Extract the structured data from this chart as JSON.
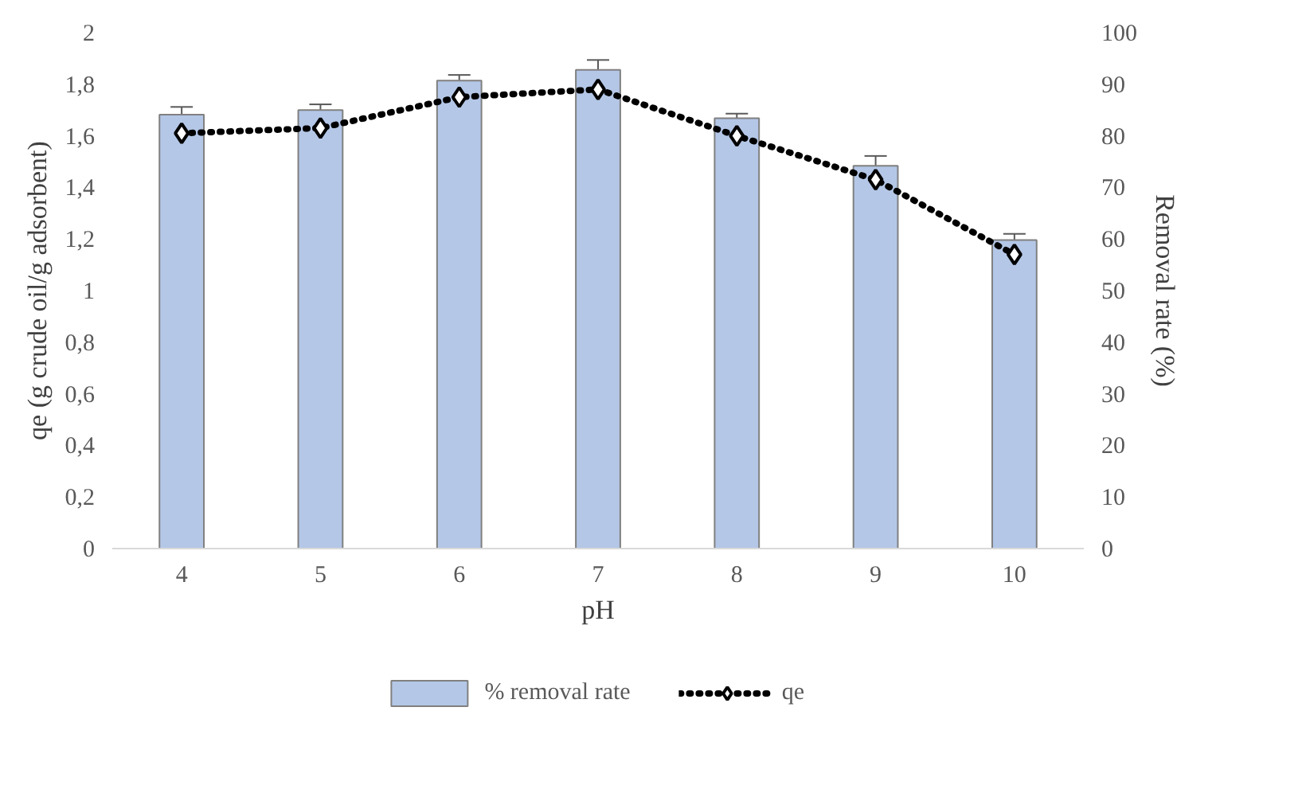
{
  "chart_data": {
    "type": "bar",
    "xlabel": "pH",
    "ylabel": "qe (g crude oil/g adsorbent)",
    "y2label": "Removal rate (%)",
    "categories": [
      "4",
      "5",
      "6",
      "7",
      "8",
      "9",
      "10"
    ],
    "series": [
      {
        "name": "% removal rate",
        "axis": "y2",
        "color": "#b4c7e7",
        "values": [
          84.1,
          85.0,
          90.7,
          92.8,
          83.4,
          74.2,
          59.8
        ],
        "errors": [
          1.5,
          1.1,
          1.1,
          1.9,
          0.9,
          1.9,
          1.2
        ]
      },
      {
        "name": "qe",
        "type": "line",
        "color": "#000000",
        "marker": "diamond",
        "line_style": "dotted",
        "values": [
          1.61,
          1.63,
          1.75,
          1.78,
          1.6,
          1.43,
          1.14
        ]
      }
    ],
    "ylim": [
      0,
      2
    ],
    "yticks": [
      0,
      {
        "value": 0.2,
        "label": "0,2"
      },
      {
        "value": 0.4,
        "label": "0,4"
      },
      {
        "value": 0.6,
        "label": "0,6"
      },
      {
        "value": 0.8,
        "label": "0,8"
      },
      1,
      {
        "value": 1.2,
        "label": "1,2"
      },
      {
        "value": 1.4,
        "label": "1,4"
      },
      {
        "value": 1.6,
        "label": "1,6"
      },
      {
        "value": 1.8,
        "label": "1,8"
      },
      2
    ],
    "y2lim": [
      0,
      100
    ],
    "y2ticks": [
      0,
      10,
      20,
      30,
      40,
      50,
      60,
      70,
      80,
      90,
      100
    ],
    "grid": false,
    "legend": "bottom"
  }
}
